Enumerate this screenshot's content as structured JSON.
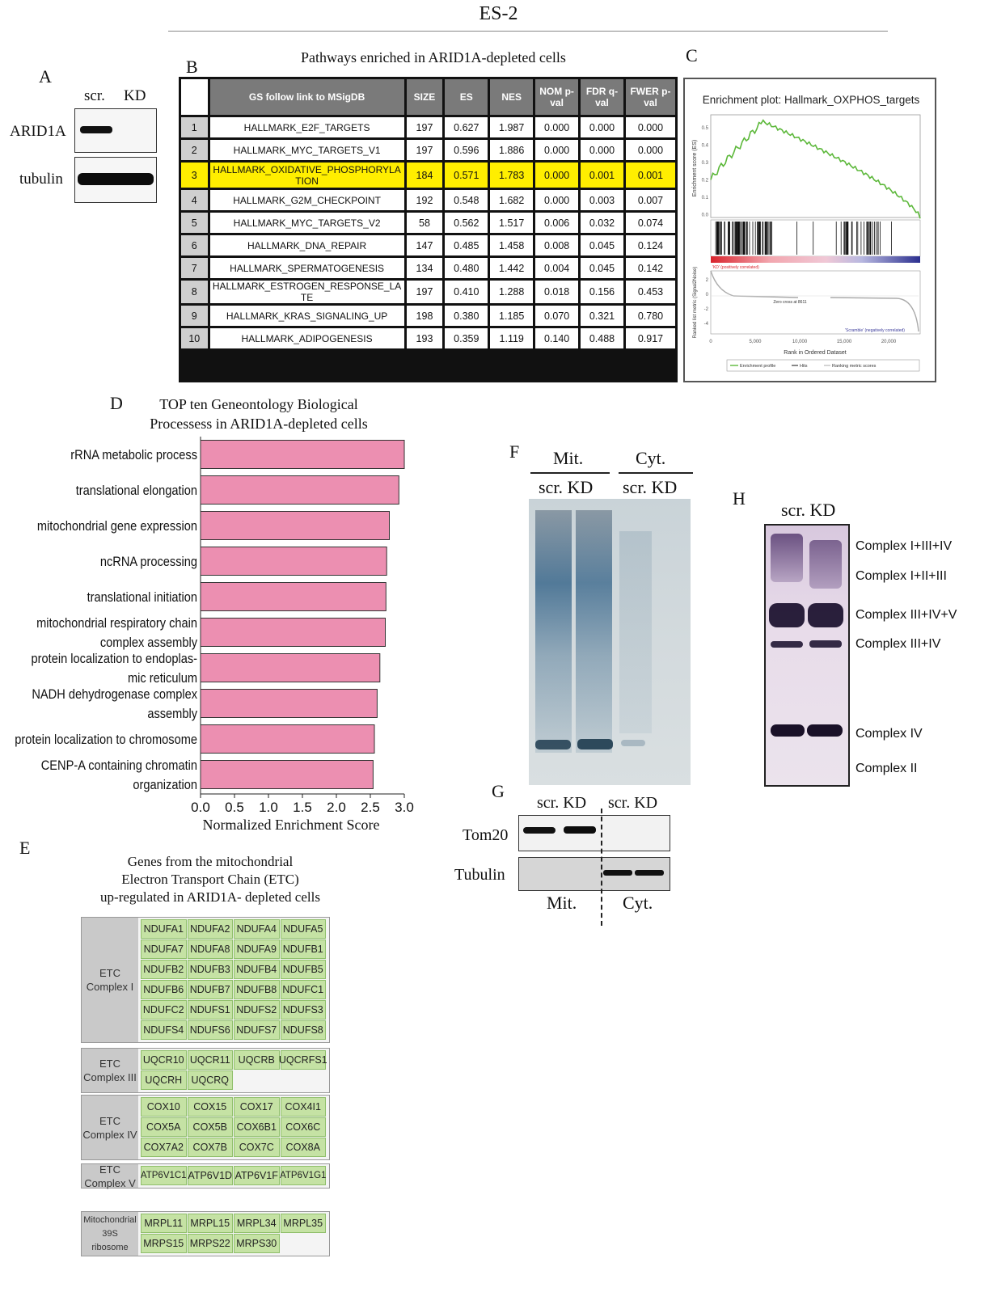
{
  "figure": {
    "title": "ES-2"
  },
  "panel_a": {
    "letter": "A",
    "lanes": [
      "scr.",
      "KD"
    ],
    "rows": [
      "ARID1A",
      "tubulin"
    ]
  },
  "panel_b": {
    "letter": "B",
    "title": "Pathways enriched in ARID1A-depleted cells",
    "headers": [
      "GS follow link to MSigDB",
      "SIZE",
      "ES",
      "NES",
      "NOM p-val",
      "FDR q-val",
      "FWER p-val"
    ],
    "rows": [
      {
        "idx": "1",
        "name": "HALLMARK_E2F_TARGETS",
        "size": "197",
        "es": "0.627",
        "nes": "1.987",
        "nom": "0.000",
        "fdr": "0.000",
        "fwer": "0.000"
      },
      {
        "idx": "2",
        "name": "HALLMARK_MYC_TARGETS_V1",
        "size": "197",
        "es": "0.596",
        "nes": "1.886",
        "nom": "0.000",
        "fdr": "0.000",
        "fwer": "0.000"
      },
      {
        "idx": "3",
        "name": "HALLMARK_OXIDATIVE_PHOSPHORYLATION",
        "size": "184",
        "es": "0.571",
        "nes": "1.783",
        "nom": "0.000",
        "fdr": "0.001",
        "fwer": "0.001"
      },
      {
        "idx": "4",
        "name": "HALLMARK_G2M_CHECKPOINT",
        "size": "192",
        "es": "0.548",
        "nes": "1.682",
        "nom": "0.000",
        "fdr": "0.003",
        "fwer": "0.007"
      },
      {
        "idx": "5",
        "name": "HALLMARK_MYC_TARGETS_V2",
        "size": "58",
        "es": "0.562",
        "nes": "1.517",
        "nom": "0.006",
        "fdr": "0.032",
        "fwer": "0.074"
      },
      {
        "idx": "6",
        "name": "HALLMARK_DNA_REPAIR",
        "size": "147",
        "es": "0.485",
        "nes": "1.458",
        "nom": "0.008",
        "fdr": "0.045",
        "fwer": "0.124"
      },
      {
        "idx": "7",
        "name": "HALLMARK_SPERMATOGENESIS",
        "size": "134",
        "es": "0.480",
        "nes": "1.442",
        "nom": "0.004",
        "fdr": "0.045",
        "fwer": "0.142"
      },
      {
        "idx": "8",
        "name": "HALLMARK_ESTROGEN_RESPONSE_LATE",
        "size": "197",
        "es": "0.410",
        "nes": "1.288",
        "nom": "0.018",
        "fdr": "0.156",
        "fwer": "0.453"
      },
      {
        "idx": "9",
        "name": "HALLMARK_KRAS_SIGNALING_UP",
        "size": "198",
        "es": "0.380",
        "nes": "1.185",
        "nom": "0.070",
        "fdr": "0.321",
        "fwer": "0.780"
      },
      {
        "idx": "10",
        "name": "HALLMARK_ADIPOGENESIS",
        "size": "193",
        "es": "0.359",
        "nes": "1.119",
        "nom": "0.140",
        "fdr": "0.488",
        "fwer": "0.917"
      }
    ],
    "highlight_row": 3,
    "highlight_color": "#ffee00"
  },
  "panel_c": {
    "letter": "C",
    "title": "Enrichment plot: Hallmark_OXPHOS_targets",
    "ylabel_top": "Enrichment score (ES)",
    "ylabel_bottom": "Ranked list metric (Signal2Noise)",
    "xlabel": "Rank in Ordered Dataset",
    "pos_label": "'KD' (positively correlated)",
    "neg_label": "'Scramble' (negatively correlated)",
    "zero_cross": "Zero cross at 8611",
    "legend": [
      "Enrichment profile",
      "Hits",
      "Ranking metric scores"
    ],
    "es_ticks": [
      "0.5",
      "0.4",
      "0.3",
      "0.2",
      "0.1",
      "0.0"
    ],
    "metric_ticks": [
      "2",
      "0",
      "-2",
      "-4"
    ],
    "x_ticks": [
      "0",
      "5,000",
      "10,000",
      "15,000",
      "20,000"
    ],
    "es_color": "#5cb83a"
  },
  "panel_d": {
    "letter": "D",
    "title_line1": "TOP ten Geneontology Biological",
    "title_line2": "Processess in ARID1A-depleted cells",
    "xlabel": "Normalized Enrichment Score",
    "bar_color": "#ec8fb1",
    "chart_data": {
      "type": "bar",
      "orientation": "horizontal",
      "categories": [
        "rRNA metabolic process",
        "translational elongation",
        "mitochondrial gene expression",
        "ncRNA processing",
        "translational initiation",
        "mitochondrial respiratory chain complex assembly",
        "protein localization to endoplasmic reticulum",
        "NADH dehydrogenase complex assembly",
        "protein localization to chromosome",
        "CENP-A containing chromatin organization"
      ],
      "values": [
        3.0,
        2.92,
        2.78,
        2.74,
        2.73,
        2.72,
        2.64,
        2.6,
        2.56,
        2.54
      ],
      "xlabel": "Normalized Enrichment Score",
      "xlim": [
        0,
        3.0
      ],
      "x_ticks": [
        "0.0",
        "0.5",
        "1.0",
        "1.5",
        "2.0",
        "2.5",
        "3.0"
      ]
    },
    "label_lines": [
      [
        "rRNA metabolic process"
      ],
      [
        "translational elongation"
      ],
      [
        "mitochondrial gene expression"
      ],
      [
        "ncRNA processing"
      ],
      [
        "translational initiation"
      ],
      [
        "mitochondrial respiratory chain",
        "complex assembly"
      ],
      [
        "protein localization to  endoplas-",
        "mic reticulum"
      ],
      [
        "NADH dehydrogenase complex",
        "assembly"
      ],
      [
        "protein localization to chromosome"
      ],
      [
        "CENP-A containing chromatin",
        "organization"
      ]
    ]
  },
  "panel_e": {
    "letter": "E",
    "title_line1": "Genes from the mitochondrial",
    "title_line2": "Electron Transport Chain (ETC)",
    "title_line3": "up-regulated in ARID1A- depleted cells",
    "groups": [
      {
        "label": [
          "ETC",
          "Complex I"
        ],
        "genes": [
          "NDUFA1",
          "NDUFA2",
          "NDUFA4",
          "NDUFA5",
          "NDUFA7",
          "NDUFA8",
          "NDUFA9",
          "NDUFB1",
          "NDUFB2",
          "NDUFB3",
          "NDUFB4",
          "NDUFB5",
          "NDUFB6",
          "NDUFB7",
          "NDUFB8",
          "NDUFC1",
          "NDUFC2",
          "NDUFS1",
          "NDUFS2",
          "NDUFS3",
          "NDUFS4",
          "NDUFS6",
          "NDUFS7",
          "NDUFS8"
        ]
      },
      {
        "label": [
          "ETC",
          "Complex III"
        ],
        "genes": [
          "UQCR10",
          "UQCR11",
          "UQCRB",
          "UQCRFS1",
          "UQCRH",
          "UQCRQ"
        ]
      },
      {
        "label": [
          "ETC",
          "Complex IV"
        ],
        "genes": [
          "COX10",
          "COX15",
          "COX17",
          "COX4I1",
          "COX5A",
          "COX5B",
          "COX6B1",
          "COX6C",
          "COX7A2",
          "COX7B",
          "COX7C",
          "COX8A"
        ]
      },
      {
        "label": [
          "ETC",
          "Complex V"
        ],
        "genes": [
          "ATP6V1C1",
          "ATP6V1D",
          "ATP6V1F",
          "ATP6V1G1"
        ]
      },
      {
        "label": [
          "Mitochondrial",
          "39S",
          "ribosome"
        ],
        "genes": [
          "MRPL11",
          "MRPL15",
          "MRPL34",
          "MRPL35",
          "MRPS15",
          "MRPS22",
          "MRPS30"
        ]
      }
    ],
    "gene_color": "#c5e2a4"
  },
  "panel_f": {
    "letter": "F",
    "groups": [
      "Mit.",
      "Cyt."
    ],
    "lanes": "scr. KD"
  },
  "panel_g": {
    "letter": "G",
    "lanes": "scr. KD",
    "rows": [
      "Tom20",
      "Tubulin"
    ],
    "groups": [
      "Mit.",
      "Cyt."
    ]
  },
  "panel_h": {
    "letter": "H",
    "lanes": "scr. KD",
    "bands": [
      "Complex I+III+IV",
      "Complex I+II+III",
      "Complex III+IV+V",
      "Complex III+IV",
      "Complex IV",
      "Complex II"
    ]
  }
}
